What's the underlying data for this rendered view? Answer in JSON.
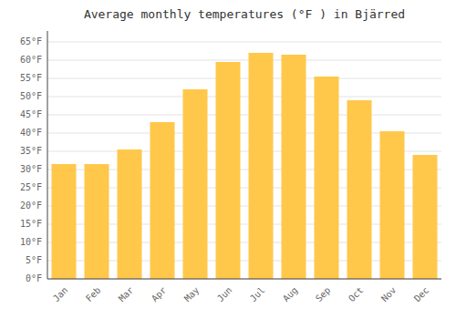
{
  "chart_data": {
    "type": "bar",
    "title": "Average monthly temperatures (°F ) in Bjärred",
    "categories": [
      "Jan",
      "Feb",
      "Mar",
      "Apr",
      "May",
      "Jun",
      "Jul",
      "Aug",
      "Sep",
      "Oct",
      "Nov",
      "Dec"
    ],
    "values": [
      31.5,
      31.5,
      35.5,
      43,
      52,
      59.5,
      62,
      61.5,
      55.5,
      49,
      40.5,
      34
    ],
    "color": "#FFC84A",
    "ylim": [
      0,
      68
    ],
    "yticks": [
      {
        "value": 0,
        "label": "0°F"
      },
      {
        "value": 5,
        "label": "5°F"
      },
      {
        "value": 10,
        "label": "10°F"
      },
      {
        "value": 15,
        "label": "15°F"
      },
      {
        "value": 20,
        "label": "20°F"
      },
      {
        "value": 25,
        "label": "25°F"
      },
      {
        "value": 30,
        "label": "30°F"
      },
      {
        "value": 35,
        "label": "35°F"
      },
      {
        "value": 40,
        "label": "40°F"
      },
      {
        "value": 45,
        "label": "45°F"
      },
      {
        "value": 50,
        "label": "50°F"
      },
      {
        "value": 55,
        "label": "55°F"
      },
      {
        "value": 60,
        "label": "60°F"
      },
      {
        "value": 65,
        "label": "65°F"
      }
    ],
    "grid": true
  }
}
